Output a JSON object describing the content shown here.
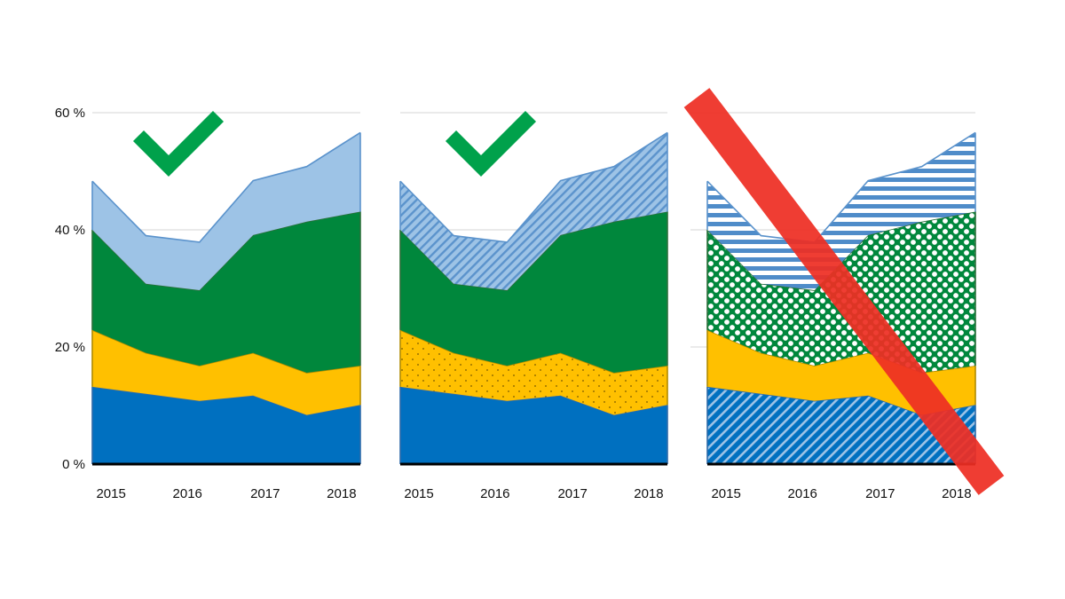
{
  "y_axis": {
    "ticks": [
      "0 %",
      "20 %",
      "40 %",
      "60 %"
    ]
  },
  "chart_data": [
    {
      "type": "area",
      "stacked": true,
      "fill_style": "solid",
      "verdict": "check-mark",
      "x": [
        2015,
        2015.7,
        2016.4,
        2017.1,
        2017.8,
        2018.5
      ],
      "xtick_labels": [
        "2015",
        "2016",
        "2017",
        "2018"
      ],
      "ylim": [
        0,
        60
      ],
      "y_unit": "%",
      "grid": true,
      "series": [
        {
          "values": [
            13.2,
            12.0,
            10.8,
            11.7,
            8.4,
            10.1
          ],
          "color": "#0070c0"
        },
        {
          "values": [
            9.7,
            7.0,
            6.0,
            7.3,
            7.2,
            6.7
          ],
          "color": "#ffc000"
        },
        {
          "values": [
            17.1,
            11.8,
            12.9,
            20.1,
            25.8,
            26.3
          ],
          "color": "#00873c"
        },
        {
          "values": [
            8.3,
            8.2,
            8.2,
            9.3,
            9.4,
            13.5
          ],
          "color": "#9dc3e6"
        }
      ]
    },
    {
      "type": "area",
      "stacked": true,
      "fill_style": "solid-with-patterns",
      "verdict": "check-mark",
      "x": [
        2015,
        2015.7,
        2016.4,
        2017.1,
        2017.8,
        2018.5
      ],
      "xtick_labels": [
        "2015",
        "2016",
        "2017",
        "2018"
      ],
      "ylim": [
        0,
        60
      ],
      "y_unit": "%",
      "grid": true,
      "series": [
        {
          "values": [
            13.2,
            12.0,
            10.8,
            11.7,
            8.4,
            10.1
          ],
          "color": "#0070c0"
        },
        {
          "values": [
            9.7,
            7.0,
            6.0,
            7.3,
            7.2,
            6.7
          ],
          "color": "#ffc000",
          "pattern": "dots"
        },
        {
          "values": [
            17.1,
            11.8,
            12.9,
            20.1,
            25.8,
            26.3
          ],
          "color": "#00873c"
        },
        {
          "values": [
            8.3,
            8.2,
            8.2,
            9.3,
            9.4,
            13.5
          ],
          "color": "#9dc3e6",
          "pattern": "diagonal-lines"
        }
      ]
    },
    {
      "type": "area",
      "stacked": true,
      "fill_style": "pattern-heavy",
      "verdict": "crossed-out",
      "x": [
        2015,
        2015.7,
        2016.4,
        2017.1,
        2017.8,
        2018.5
      ],
      "xtick_labels": [
        "2015",
        "2016",
        "2017",
        "2018"
      ],
      "ylim": [
        0,
        60
      ],
      "y_unit": "%",
      "grid": true,
      "series": [
        {
          "values": [
            13.2,
            12.0,
            10.8,
            11.7,
            8.4,
            10.1
          ],
          "color": "#0070c0",
          "pattern": "diagonal-stripes"
        },
        {
          "values": [
            9.7,
            7.0,
            6.0,
            7.3,
            7.2,
            6.7
          ],
          "color": "#ffc000"
        },
        {
          "values": [
            17.1,
            11.8,
            12.9,
            20.1,
            25.8,
            26.3
          ],
          "color": "#00873c",
          "pattern": "polka-dots"
        },
        {
          "values": [
            8.3,
            8.2,
            8.2,
            9.3,
            9.4,
            13.5
          ],
          "color": "#4f8cc9",
          "pattern": "horizontal-stripes"
        }
      ]
    }
  ],
  "colors": {
    "check": "#00a14b",
    "cross": "#ee2e24",
    "grid": "#d4d4d4",
    "outline_blue": "#4f8cc9",
    "outline_gold": "#b08a00"
  }
}
